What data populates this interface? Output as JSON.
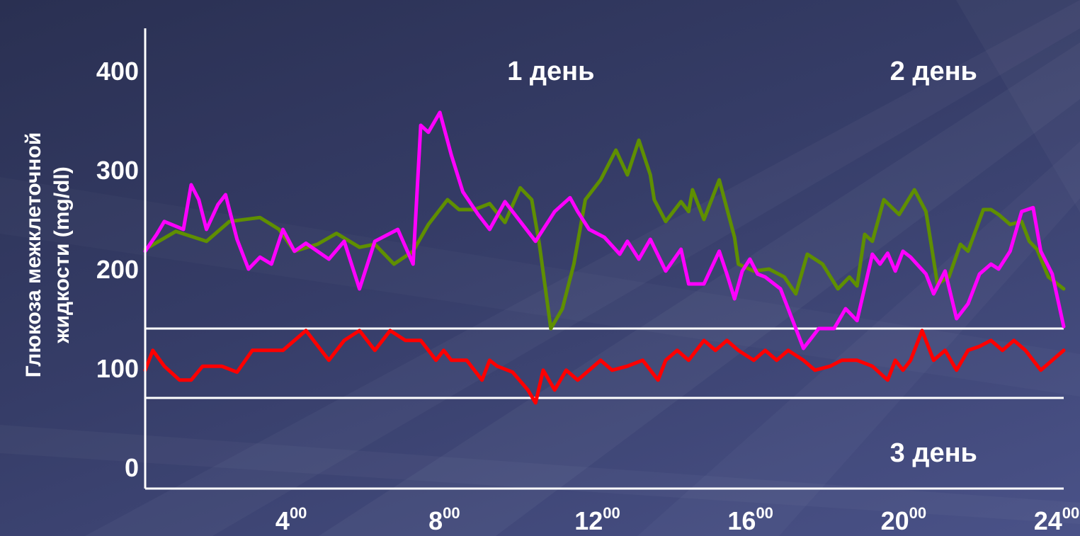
{
  "chart_data": {
    "type": "line",
    "ylabel_lines": [
      "Глюкоза межклеточной",
      "жидкости (mg/dl)"
    ],
    "ylim": [
      0,
      450
    ],
    "xlim": [
      0,
      24
    ],
    "yticks": [
      {
        "value": 0,
        "label": "0"
      },
      {
        "value": 100,
        "label": "100"
      },
      {
        "value": 200,
        "label": "200"
      },
      {
        "value": 300,
        "label": "300"
      },
      {
        "value": 400,
        "label": "400"
      }
    ],
    "xticks": [
      {
        "value": 4,
        "base": "4",
        "sup": "00"
      },
      {
        "value": 8,
        "base": "8",
        "sup": "00"
      },
      {
        "value": 12,
        "base": "12",
        "sup": "00"
      },
      {
        "value": 16,
        "base": "16",
        "sup": "00"
      },
      {
        "value": 20,
        "base": "20",
        "sup": "00"
      },
      {
        "value": 24,
        "base": "24",
        "sup": "00"
      }
    ],
    "target_range": [
      70,
      140
    ],
    "annotations": [
      {
        "text": "1 день",
        "x": 10.6,
        "y": 400
      },
      {
        "text": "2 день",
        "x": 20.6,
        "y": 400
      },
      {
        "text": "3 день",
        "x": 20.6,
        "y": 15
      }
    ],
    "grid": false,
    "series": [
      {
        "name": "2 день",
        "color": "#5f8f00",
        "x": [
          0,
          0.8,
          1.6,
          2.2,
          3.0,
          3.5,
          3.9,
          4.5,
          5.0,
          5.6,
          6.0,
          6.5,
          7.0,
          7.4,
          7.9,
          8.2,
          8.6,
          9.0,
          9.4,
          9.8,
          10.1,
          10.3,
          10.6,
          10.9,
          11.2,
          11.5,
          11.9,
          12.3,
          12.6,
          12.9,
          13.2,
          13.3,
          13.6,
          14.0,
          14.2,
          14.3,
          14.6,
          15.0,
          15.4,
          15.5,
          15.9,
          16.3,
          16.7,
          17.0,
          17.3,
          17.7,
          18.1,
          18.4,
          18.6,
          18.8,
          19.0,
          19.3,
          19.7,
          20.1,
          20.4,
          20.7,
          21.0,
          21.3,
          21.5,
          21.9,
          22.1,
          22.3,
          22.6,
          22.9,
          23.1,
          23.3,
          23.6,
          24.0
        ],
        "y": [
          220,
          238,
          228,
          248,
          252,
          240,
          218,
          225,
          236,
          222,
          225,
          205,
          218,
          245,
          270,
          260,
          260,
          266,
          247,
          282,
          270,
          225,
          140,
          160,
          205,
          270,
          290,
          320,
          295,
          330,
          295,
          270,
          248,
          268,
          258,
          280,
          250,
          290,
          232,
          205,
          198,
          200,
          192,
          175,
          215,
          205,
          180,
          192,
          183,
          235,
          228,
          270,
          255,
          280,
          258,
          185,
          192,
          225,
          218,
          260,
          260,
          255,
          245,
          248,
          228,
          220,
          192,
          180
        ]
      },
      {
        "name": "1 день",
        "color": "#ff00ff",
        "x": [
          0,
          0.3,
          0.5,
          1.0,
          1.2,
          1.4,
          1.6,
          1.9,
          2.1,
          2.4,
          2.7,
          3.0,
          3.3,
          3.6,
          3.9,
          4.2,
          4.5,
          4.8,
          5.2,
          5.6,
          6.0,
          6.2,
          6.6,
          7.0,
          7.2,
          7.4,
          7.7,
          8.0,
          8.3,
          8.7,
          9.0,
          9.4,
          9.8,
          10.2,
          10.7,
          11.1,
          11.3,
          11.6,
          12.0,
          12.4,
          12.6,
          12.9,
          13.2,
          13.6,
          14.0,
          14.2,
          14.6,
          15.0,
          15.2,
          15.4,
          15.6,
          15.8,
          16.0,
          16.2,
          16.6,
          16.9,
          17.2,
          17.6,
          18.0,
          18.3,
          18.6,
          19.0,
          19.2,
          19.4,
          19.6,
          19.8,
          20.0,
          20.4,
          20.6,
          20.9,
          21.2,
          21.5,
          21.8,
          22.1,
          22.3,
          22.6,
          22.9,
          23.2,
          23.4,
          23.7,
          24.0
        ],
        "y": [
          218,
          235,
          248,
          240,
          285,
          270,
          240,
          265,
          275,
          230,
          200,
          212,
          205,
          240,
          218,
          226,
          218,
          210,
          228,
          180,
          228,
          232,
          240,
          205,
          345,
          338,
          358,
          315,
          278,
          255,
          240,
          268,
          248,
          228,
          258,
          272,
          258,
          240,
          232,
          215,
          228,
          210,
          230,
          198,
          220,
          185,
          185,
          218,
          195,
          170,
          198,
          210,
          195,
          192,
          180,
          150,
          120,
          140,
          140,
          160,
          148,
          215,
          205,
          216,
          198,
          218,
          212,
          195,
          175,
          198,
          150,
          165,
          195,
          205,
          200,
          218,
          258,
          262,
          218,
          195,
          142
        ]
      },
      {
        "name": "3 день",
        "color": "#ff0000",
        "x": [
          0,
          0.2,
          0.5,
          0.9,
          1.2,
          1.5,
          2.0,
          2.4,
          2.8,
          3.2,
          3.6,
          4.2,
          4.8,
          5.2,
          5.6,
          6.0,
          6.4,
          6.8,
          7.2,
          7.6,
          7.8,
          8.0,
          8.2,
          8.4,
          8.8,
          9.0,
          9.2,
          9.6,
          10.0,
          10.2,
          10.4,
          10.7,
          11.0,
          11.3,
          11.6,
          11.9,
          12.2,
          12.6,
          13.0,
          13.4,
          13.6,
          13.9,
          14.2,
          14.6,
          14.9,
          15.2,
          15.5,
          15.9,
          16.2,
          16.5,
          16.8,
          17.2,
          17.5,
          17.9,
          18.2,
          18.6,
          19.0,
          19.4,
          19.6,
          19.8,
          20.0,
          20.3,
          20.6,
          20.9,
          21.2,
          21.5,
          21.8,
          22.1,
          22.4,
          22.7,
          23.0,
          23.4,
          23.7,
          24.0
        ],
        "y": [
          98,
          118,
          102,
          88,
          88,
          102,
          102,
          96,
          118,
          118,
          118,
          138,
          108,
          128,
          138,
          118,
          138,
          128,
          128,
          108,
          118,
          108,
          108,
          108,
          88,
          108,
          102,
          96,
          78,
          65,
          98,
          78,
          98,
          88,
          98,
          108,
          98,
          102,
          108,
          88,
          108,
          118,
          108,
          128,
          118,
          128,
          118,
          108,
          118,
          108,
          118,
          108,
          98,
          102,
          108,
          108,
          102,
          88,
          108,
          98,
          108,
          138,
          108,
          118,
          98,
          118,
          122,
          128,
          118,
          128,
          118,
          98,
          108,
          118
        ]
      }
    ]
  }
}
